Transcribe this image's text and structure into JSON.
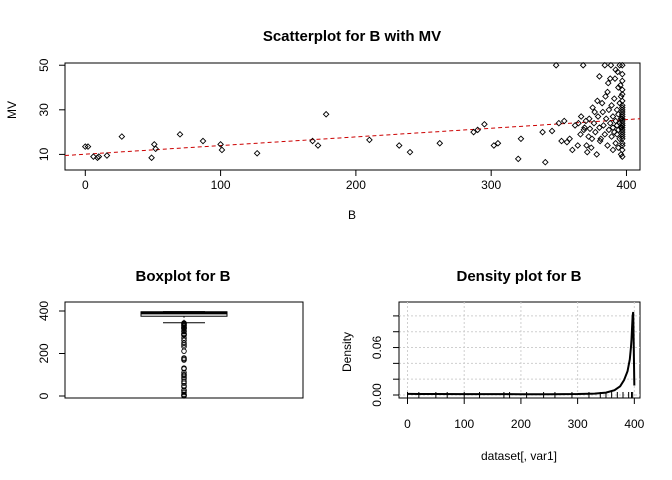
{
  "chart_data": [
    {
      "type": "scatter",
      "title": "Scatterplot for B with MV",
      "xlabel": "B",
      "ylabel": "MV",
      "xlim": [
        -15,
        410
      ],
      "ylim": [
        3,
        51
      ],
      "xticks": [
        "0",
        "100",
        "200",
        "300",
        "400"
      ],
      "yticks": [
        "10",
        "30",
        "50"
      ],
      "xtick_values": [
        0,
        100,
        200,
        300,
        400
      ],
      "ytick_values": [
        10,
        30,
        50
      ],
      "trend_line": {
        "style": "dashed",
        "color": "#cc0000",
        "x": [
          -15,
          410
        ],
        "y": [
          9.5,
          26.0
        ]
      },
      "points": [
        [
          0,
          13.5
        ],
        [
          2,
          13.5
        ],
        [
          6,
          9
        ],
        [
          9,
          8.5
        ],
        [
          10,
          9
        ],
        [
          16,
          9.5
        ],
        [
          27,
          18
        ],
        [
          49,
          8.5
        ],
        [
          51,
          14.5
        ],
        [
          52,
          12.5
        ],
        [
          70,
          19
        ],
        [
          87,
          16
        ],
        [
          100,
          14.5
        ],
        [
          101,
          12
        ],
        [
          127,
          10.5
        ],
        [
          168,
          16
        ],
        [
          172,
          14
        ],
        [
          178,
          28
        ],
        [
          210,
          16.5
        ],
        [
          232,
          14
        ],
        [
          240,
          11
        ],
        [
          262,
          15
        ],
        [
          287,
          20
        ],
        [
          290,
          21
        ],
        [
          295,
          23.5
        ],
        [
          302,
          14
        ],
        [
          305,
          15
        ],
        [
          320,
          8
        ],
        [
          322,
          17
        ],
        [
          338,
          20
        ],
        [
          340,
          6.5
        ],
        [
          345,
          20.5
        ],
        [
          348,
          50
        ],
        [
          350,
          24
        ],
        [
          352,
          16
        ],
        [
          354,
          25
        ],
        [
          356,
          15.5
        ],
        [
          358,
          17
        ],
        [
          360,
          12
        ],
        [
          362,
          23
        ],
        [
          364,
          14
        ],
        [
          366,
          19
        ],
        [
          368,
          50
        ],
        [
          369,
          22
        ],
        [
          370,
          25
        ],
        [
          371,
          11
        ],
        [
          372,
          18
        ],
        [
          373,
          21.5
        ],
        [
          374,
          13
        ],
        [
          375,
          31
        ],
        [
          376,
          24
        ],
        [
          377,
          20
        ],
        [
          378,
          10
        ],
        [
          379,
          27
        ],
        [
          380,
          22
        ],
        [
          380,
          45
        ],
        [
          381,
          17
        ],
        [
          382,
          33
        ],
        [
          383,
          23
        ],
        [
          384,
          19
        ],
        [
          384,
          50
        ],
        [
          385,
          26
        ],
        [
          386,
          14
        ],
        [
          386,
          38
        ],
        [
          387,
          21
        ],
        [
          387,
          30
        ],
        [
          388,
          24
        ],
        [
          388,
          44
        ],
        [
          389,
          18
        ],
        [
          389,
          32
        ],
        [
          390,
          22
        ],
        [
          390,
          27
        ],
        [
          390,
          12
        ],
        [
          391,
          35
        ],
        [
          391,
          20
        ],
        [
          392,
          25
        ],
        [
          392,
          15
        ],
        [
          392,
          48
        ],
        [
          393,
          23
        ],
        [
          393,
          30
        ],
        [
          393,
          19
        ],
        [
          394,
          28
        ],
        [
          394,
          21
        ],
        [
          394,
          13
        ],
        [
          394,
          40
        ],
        [
          395,
          24
        ],
        [
          395,
          17
        ],
        [
          395,
          33
        ],
        [
          395,
          50
        ],
        [
          396,
          22
        ],
        [
          396,
          26
        ],
        [
          396,
          10
        ],
        [
          396,
          36
        ],
        [
          396.9,
          23
        ],
        [
          396.9,
          20
        ],
        [
          396.9,
          28
        ],
        [
          396.9,
          15
        ],
        [
          396.9,
          50
        ],
        [
          396.9,
          31
        ],
        [
          396.9,
          19
        ],
        [
          396.9,
          25
        ],
        [
          396.9,
          43
        ],
        [
          396.9,
          12
        ],
        [
          396.9,
          22
        ],
        [
          396.9,
          34
        ],
        [
          396.9,
          17
        ],
        [
          396.9,
          27
        ],
        [
          396.9,
          21
        ],
        [
          396.9,
          39
        ],
        [
          396.9,
          14
        ],
        [
          396.9,
          24
        ],
        [
          396.9,
          30
        ],
        [
          396.9,
          9
        ],
        [
          396.9,
          46
        ],
        [
          396.9,
          18
        ],
        [
          396.9,
          26
        ],
        [
          396.9,
          37
        ],
        [
          396.9,
          23
        ],
        [
          396.9,
          29
        ],
        [
          396.9,
          32
        ],
        [
          395.5,
          41
        ],
        [
          393.5,
          47
        ],
        [
          391.5,
          44
        ],
        [
          388.5,
          50
        ],
        [
          386.5,
          42
        ],
        [
          384.5,
          36
        ],
        [
          382.5,
          29
        ],
        [
          380.5,
          16
        ],
        [
          378.5,
          34
        ],
        [
          376.5,
          29
        ],
        [
          374.5,
          17
        ],
        [
          372.5,
          26
        ],
        [
          370.5,
          14
        ],
        [
          368.5,
          21
        ],
        [
          366.5,
          27
        ],
        [
          364.5,
          24
        ]
      ]
    },
    {
      "type": "box",
      "title": "Boxplot for  B",
      "yticks": [
        "0",
        "200",
        "400"
      ],
      "ytick_values": [
        0,
        200,
        400
      ],
      "ylim": [
        0,
        400
      ],
      "stats": {
        "lower_whisker": 344.9,
        "q1": 375.4,
        "median": 391.4,
        "q3": 396.2,
        "upper_whisker": 396.9
      },
      "outliers": [
        0.3,
        2.5,
        3.5,
        7.7,
        16.5,
        24.7,
        27.5,
        43.1,
        48.5,
        60.7,
        68.9,
        81.3,
        88.6,
        96.7,
        100.6,
        109.9,
        127.4,
        131.4,
        169.3,
        174.2,
        178.8,
        210.9,
        232.6,
        240.2,
        248.3,
        261.9,
        272.2,
        285.8,
        288.9,
        290.3,
        294.3,
        302.8,
        306.4,
        316.0,
        318.8,
        321.0,
        322.6,
        328.4,
        331.3,
        334.4,
        338.6,
        341.3,
        343.3
      ]
    },
    {
      "type": "line",
      "title": "Density plot for B",
      "xlabel": "dataset[, var1]",
      "ylabel": "Density",
      "xlim": [
        -15,
        410
      ],
      "ylim": [
        0,
        0.11
      ],
      "xticks": [
        "0",
        "100",
        "200",
        "300",
        "400"
      ],
      "xtick_values": [
        0,
        100,
        200,
        300,
        400
      ],
      "yticks": [
        "0.00",
        "0.06"
      ],
      "ytick_values": [
        0,
        0.06
      ],
      "grid": true,
      "series": [
        {
          "x": [
            0,
            20,
            50,
            100,
            150,
            200,
            250,
            300,
            330,
            350,
            365,
            375,
            382,
            388,
            392,
            394,
            395,
            396,
            397,
            398,
            399,
            400
          ],
          "values": [
            0.0015,
            0.0013,
            0.0012,
            0.0011,
            0.0011,
            0.001,
            0.001,
            0.0012,
            0.0018,
            0.003,
            0.006,
            0.011,
            0.019,
            0.03,
            0.045,
            0.06,
            0.07,
            0.085,
            0.1,
            0.105,
            0.06,
            0.012
          ]
        }
      ],
      "rug": [
        0,
        20,
        50,
        70,
        100,
        127,
        170,
        180,
        210,
        240,
        260,
        290,
        320,
        340,
        350,
        360,
        370,
        380,
        390,
        395,
        397
      ]
    }
  ]
}
